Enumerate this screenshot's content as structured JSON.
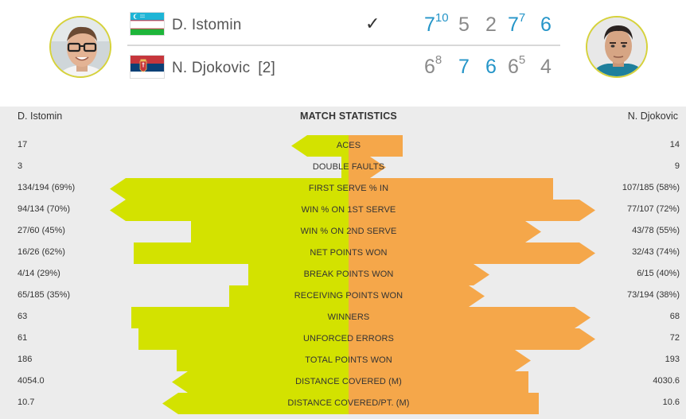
{
  "colors": {
    "player1_bar": "#d3e200",
    "player2_bar": "#f5a74a",
    "won_set": "#2595c8",
    "lost_set": "#8a8a8a",
    "avatar_ring": "#d6d23a"
  },
  "scoreboard": {
    "player1": {
      "name": "D. Istomin",
      "seed": "",
      "flag": "uzbekistan-flag",
      "winner_mark": "✓",
      "sets": [
        {
          "games": "7",
          "tiebreak": "10",
          "won": true
        },
        {
          "games": "5",
          "tiebreak": "",
          "won": false
        },
        {
          "games": "2",
          "tiebreak": "",
          "won": false
        },
        {
          "games": "7",
          "tiebreak": "7",
          "won": true
        },
        {
          "games": "6",
          "tiebreak": "",
          "won": true
        }
      ]
    },
    "player2": {
      "name": "N. Djokovic",
      "seed": "[2]",
      "flag": "serbia-flag",
      "sets": [
        {
          "games": "6",
          "tiebreak": "8",
          "won": false
        },
        {
          "games": "7",
          "tiebreak": "",
          "won": true
        },
        {
          "games": "6",
          "tiebreak": "",
          "won": true
        },
        {
          "games": "6",
          "tiebreak": "5",
          "won": false
        },
        {
          "games": "4",
          "tiebreak": "",
          "won": false
        }
      ]
    }
  },
  "stats": {
    "title": "MATCH STATISTICS",
    "player1_label": "D. Istomin",
    "player2_label": "N. Djokovic",
    "rows": [
      {
        "label": "ACES",
        "p1": "17",
        "p2": "14",
        "p1_share": 0.24,
        "p2_share": 0.22
      },
      {
        "label": "DOUBLE FAULTS",
        "p1": "3",
        "p2": "9",
        "p1_share": 0.03,
        "p2_share": 0.15
      },
      {
        "label": "FIRST SERVE % IN",
        "p1": "134/194 (69%)",
        "p2": "107/185 (58%)",
        "p1_share": 1.0,
        "p2_share": 0.83
      },
      {
        "label": "WIN % ON 1ST SERVE",
        "p1": "94/134 (70%)",
        "p2": "77/107 (72%)",
        "p1_share": 1.0,
        "p2_share": 1.0
      },
      {
        "label": "WIN % ON 2ND SERVE",
        "p1": "27/60 (45%)",
        "p2": "43/78 (55%)",
        "p1_share": 0.66,
        "p2_share": 0.78
      },
      {
        "label": "NET POINTS WON",
        "p1": "16/26 (62%)",
        "p2": "32/43 (74%)",
        "p1_share": 0.9,
        "p2_share": 1.0
      },
      {
        "label": "BREAK POINTS WON",
        "p1": "4/14 (29%)",
        "p2": "6/15 (40%)",
        "p1_share": 0.42,
        "p2_share": 0.57
      },
      {
        "label": "RECEIVING POINTS WON",
        "p1": "65/185 (35%)",
        "p2": "73/194 (38%)",
        "p1_share": 0.5,
        "p2_share": 0.55
      },
      {
        "label": "WINNERS",
        "p1": "63",
        "p2": "68",
        "p1_share": 0.91,
        "p2_share": 0.98
      },
      {
        "label": "UNFORCED ERRORS",
        "p1": "61",
        "p2": "72",
        "p1_share": 0.88,
        "p2_share": 1.0
      },
      {
        "label": "TOTAL POINTS WON",
        "p1": "186",
        "p2": "193",
        "p1_share": 0.72,
        "p2_share": 0.74
      },
      {
        "label": "DISTANCE COVERED (M)",
        "p1": "4054.0",
        "p2": "4030.6",
        "p1_share": 0.74,
        "p2_share": 0.73
      },
      {
        "label": "DISTANCE COVERED/PT. (M)",
        "p1": "10.7",
        "p2": "10.6",
        "p1_share": 0.78,
        "p2_share": 0.77
      }
    ]
  }
}
